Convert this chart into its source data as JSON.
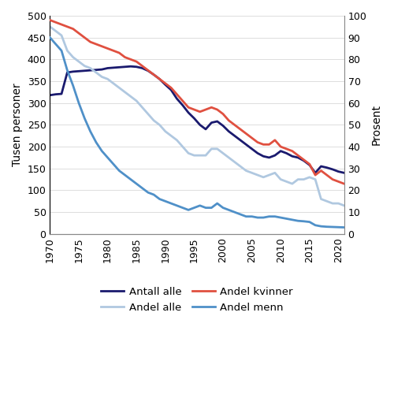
{
  "years": [
    1970,
    1971,
    1972,
    1973,
    1974,
    1975,
    1976,
    1977,
    1978,
    1979,
    1980,
    1981,
    1982,
    1983,
    1984,
    1985,
    1986,
    1987,
    1988,
    1989,
    1990,
    1991,
    1992,
    1993,
    1994,
    1995,
    1996,
    1997,
    1998,
    1999,
    2000,
    2001,
    2002,
    2003,
    2004,
    2005,
    2006,
    2007,
    2008,
    2009,
    2010,
    2011,
    2012,
    2013,
    2014,
    2015,
    2016,
    2017,
    2018,
    2019,
    2020,
    2021
  ],
  "antall_alle": [
    318,
    320,
    321,
    370,
    372,
    373,
    374,
    375,
    376,
    377,
    380,
    381,
    382,
    383,
    384,
    383,
    380,
    374,
    365,
    355,
    342,
    330,
    310,
    295,
    278,
    265,
    250,
    240,
    255,
    258,
    248,
    235,
    225,
    215,
    205,
    195,
    185,
    178,
    175,
    180,
    190,
    185,
    178,
    175,
    168,
    158,
    140,
    155,
    152,
    148,
    143,
    140
  ],
  "andel_kvinner": [
    98,
    97,
    96,
    95,
    94,
    92,
    90,
    88,
    87,
    86,
    85,
    84,
    83,
    81,
    80,
    79,
    77,
    75,
    73,
    71,
    69,
    67,
    64,
    61,
    58,
    57,
    56,
    57,
    58,
    57,
    55,
    52,
    50,
    48,
    46,
    44,
    42,
    41,
    41,
    43,
    40,
    39,
    38,
    36,
    34,
    32,
    27,
    29,
    27,
    25,
    24,
    23
  ],
  "andel_alle": [
    95,
    93,
    91,
    84,
    81,
    79,
    77,
    76,
    74,
    72,
    71,
    69,
    67,
    65,
    63,
    61,
    58,
    55,
    52,
    50,
    47,
    45,
    43,
    40,
    37,
    36,
    36,
    36,
    39,
    39,
    37,
    35,
    33,
    31,
    29,
    28,
    27,
    26,
    27,
    28,
    25,
    24,
    23,
    25,
    25,
    26,
    25,
    16,
    15,
    14,
    14,
    13
  ],
  "andel_menn": [
    90,
    87,
    84,
    75,
    68,
    60,
    53,
    47,
    42,
    38,
    35,
    32,
    29,
    27,
    25,
    23,
    21,
    19,
    18,
    16,
    15,
    14,
    13,
    12,
    11,
    12,
    13,
    12,
    12,
    14,
    12,
    11,
    10,
    9,
    8,
    8,
    7.5,
    7.5,
    8,
    8,
    7.5,
    7,
    6.5,
    6,
    5.8,
    5.5,
    4,
    3.5,
    3.3,
    3.2,
    3.1,
    3.0
  ],
  "color_antall_alle": "#1a1a6e",
  "color_andel_kvinner": "#e05040",
  "color_andel_alle": "#b0c8e0",
  "color_andel_menn": "#4f90c8",
  "ylabel_left": "Tusen personer",
  "ylabel_right": "Prosent",
  "ylim_left": [
    0,
    500
  ],
  "ylim_right": [
    0,
    100
  ],
  "xlim": [
    1970,
    2021
  ],
  "xticks": [
    1970,
    1975,
    1980,
    1985,
    1990,
    1995,
    2000,
    2005,
    2010,
    2015,
    2020
  ],
  "yticks_left": [
    0,
    50,
    100,
    150,
    200,
    250,
    300,
    350,
    400,
    450,
    500
  ],
  "yticks_right": [
    0,
    10,
    20,
    30,
    40,
    50,
    60,
    70,
    80,
    90,
    100
  ],
  "legend_labels": [
    "Antall alle",
    "Andel alle",
    "Andel kvinner",
    "Andel menn"
  ],
  "linewidth": 2.0,
  "background_color": "#ffffff"
}
